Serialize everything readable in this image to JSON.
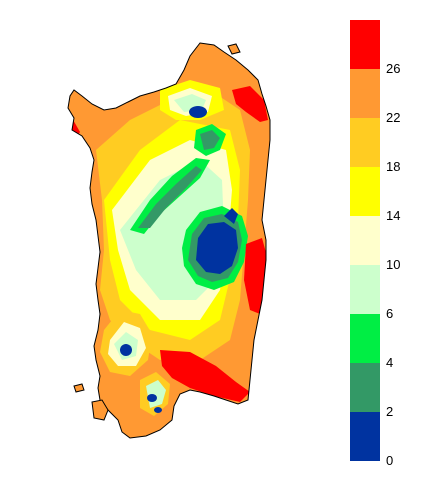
{
  "legend": {
    "labels": [
      "0",
      "2",
      "4",
      "6",
      "10",
      "14",
      "18",
      "22",
      "26"
    ],
    "bins": [
      {
        "color": "#0033a0"
      },
      {
        "color": "#339966"
      },
      {
        "color": "#00ee44"
      },
      {
        "color": "#ccffcc"
      },
      {
        "color": "#ffffcc"
      },
      {
        "color": "#ffff00"
      },
      {
        "color": "#ffcc22"
      },
      {
        "color": "#ff9933"
      },
      {
        "color": "#ff0000"
      }
    ]
  },
  "map": {
    "outline_color": "#000000"
  }
}
